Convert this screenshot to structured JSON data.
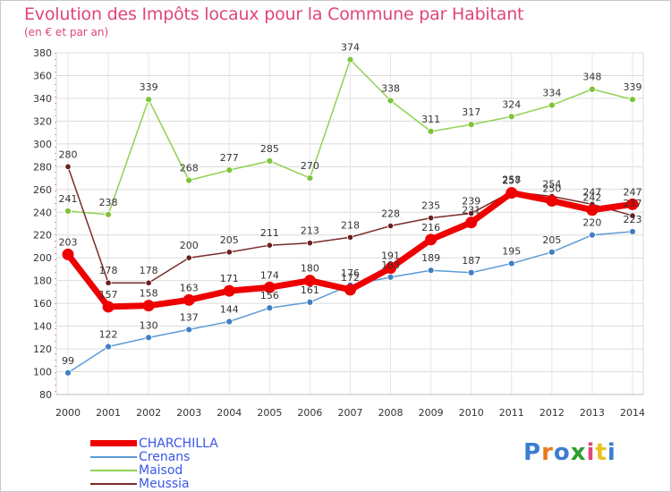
{
  "header": {
    "title": "Evolution des Impôts locaux pour la Commune par Habitant",
    "subtitle": "(en € et par an)"
  },
  "logo": {
    "text": "Proxiti",
    "colors": [
      "#3a7fd0",
      "#e87a1e",
      "#3a7fd0",
      "#2e9e2e",
      "#e0457b",
      "#e8c21e",
      "#3a7fd0"
    ]
  },
  "chart_data": {
    "type": "line",
    "x": [
      "2000",
      "2001",
      "2002",
      "2003",
      "2004",
      "2005",
      "2006",
      "2007",
      "2008",
      "2009",
      "2010",
      "2011",
      "2012",
      "2013",
      "2014"
    ],
    "ylim": [
      80,
      380
    ],
    "yticks": [
      80,
      100,
      120,
      140,
      160,
      180,
      200,
      220,
      240,
      260,
      280,
      300,
      320,
      340,
      360,
      380
    ],
    "grid": true,
    "legend_position": "bottom-left",
    "series": [
      {
        "name": "CHARCHILLA",
        "color": "#ee0000",
        "values": [
          203,
          157,
          158,
          163,
          171,
          174,
          180,
          172,
          191,
          216,
          231,
          257,
          250,
          242,
          247
        ]
      },
      {
        "name": "Crenans",
        "color": "#5b9bd5",
        "values": [
          99,
          122,
          130,
          137,
          144,
          156,
          161,
          176,
          183,
          189,
          187,
          195,
          205,
          220,
          223
        ]
      },
      {
        "name": "Maisod",
        "color": "#8fd14f",
        "values": [
          241,
          238,
          339,
          268,
          277,
          285,
          270,
          374,
          338,
          311,
          317,
          324,
          334,
          348,
          339
        ]
      },
      {
        "name": "Meussia",
        "color": "#7a2a2a",
        "values": [
          280,
          178,
          178,
          200,
          205,
          211,
          213,
          218,
          228,
          235,
          239,
          258,
          254,
          247,
          237
        ]
      }
    ]
  }
}
